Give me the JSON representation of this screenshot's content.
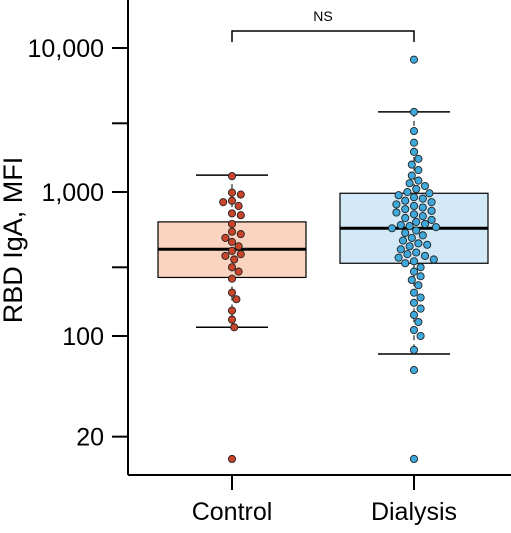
{
  "chart_data": {
    "type": "box",
    "y_scale": "log",
    "ylim": [
      12,
      16000
    ],
    "ylabel": "RBD IgA, MFI",
    "y_ticks": [
      {
        "value": 20,
        "label": "20"
      },
      {
        "value": 100,
        "label": "100"
      },
      {
        "value": 1000,
        "label": "1,000"
      },
      {
        "value": 10000,
        "label": "10,000"
      }
    ],
    "y_minor_ticks": [
      300,
      3000
    ],
    "categories": [
      "Control",
      "Dialysis"
    ],
    "significance": {
      "label": "NS",
      "between": [
        "Control",
        "Dialysis"
      ]
    },
    "groups": [
      {
        "name": "Control",
        "box_color": "#fad4c0",
        "point_color": "#c8442a",
        "q1": 255,
        "median": 400,
        "q3": 620,
        "whisker_low": 115,
        "whisker_high": 1310,
        "points": [
          1290,
          990,
          960,
          870,
          850,
          800,
          710,
          690,
          600,
          530,
          510,
          480,
          450,
          420,
          390,
          370,
          360,
          340,
          300,
          280,
          250,
          200,
          180,
          150,
          130,
          115,
          14
        ]
      },
      {
        "name": "Dialysis",
        "box_color": "#d4e9f7",
        "point_color": "#3fa9dc",
        "q1": 320,
        "median": 560,
        "q3": 980,
        "whisker_low": 75,
        "whisker_high": 3600,
        "points": [
          8300,
          3600,
          2650,
          2200,
          1900,
          1700,
          1550,
          1420,
          1300,
          1200,
          1150,
          1100,
          1050,
          1000,
          980,
          950,
          920,
          900,
          870,
          850,
          820,
          800,
          780,
          760,
          740,
          720,
          700,
          680,
          660,
          640,
          620,
          600,
          590,
          580,
          570,
          560,
          540,
          520,
          500,
          480,
          460,
          440,
          430,
          420,
          400,
          380,
          370,
          360,
          350,
          340,
          330,
          320,
          300,
          280,
          260,
          245,
          225,
          200,
          185,
          170,
          155,
          140,
          125,
          110,
          100,
          80,
          58,
          14
        ]
      }
    ]
  }
}
